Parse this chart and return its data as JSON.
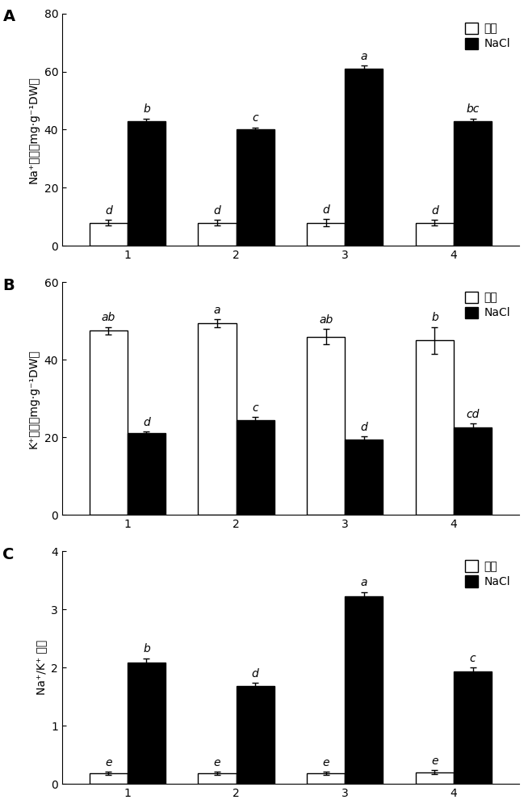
{
  "panels": [
    {
      "title": "A",
      "ylabel": "Na⁺含量（mg·g⁻¹DW）",
      "ylim": [
        0,
        80
      ],
      "yticks": [
        0,
        20,
        40,
        60,
        80
      ],
      "categories": [
        "1",
        "2",
        "3",
        "4"
      ],
      "control_values": [
        8.0,
        8.0,
        8.0,
        8.0
      ],
      "nacl_values": [
        43.0,
        40.0,
        61.0,
        43.0
      ],
      "control_errors": [
        1.0,
        1.0,
        1.2,
        1.0
      ],
      "nacl_errors": [
        0.8,
        0.8,
        1.0,
        0.8
      ],
      "control_labels": [
        "d",
        "d",
        "d",
        "d"
      ],
      "nacl_labels": [
        "b",
        "c",
        "a",
        "bc"
      ]
    },
    {
      "title": "B",
      "ylabel": "K⁺含量（mg·g⁻¹DW）",
      "ylim": [
        0,
        60
      ],
      "yticks": [
        0,
        20,
        40,
        60
      ],
      "categories": [
        "1",
        "2",
        "3",
        "4"
      ],
      "control_values": [
        47.5,
        49.5,
        46.0,
        45.0
      ],
      "nacl_values": [
        21.0,
        24.5,
        19.5,
        22.5
      ],
      "control_errors": [
        1.0,
        1.0,
        2.0,
        3.5
      ],
      "nacl_errors": [
        0.5,
        0.8,
        0.8,
        1.0
      ],
      "control_labels": [
        "ab",
        "a",
        "ab",
        "b"
      ],
      "nacl_labels": [
        "d",
        "c",
        "d",
        "cd"
      ]
    },
    {
      "title": "C",
      "ylabel": "Na⁺/K⁺ 比値",
      "ylim": [
        0,
        4
      ],
      "yticks": [
        0,
        1,
        2,
        3,
        4
      ],
      "categories": [
        "1",
        "2",
        "3",
        "4"
      ],
      "control_values": [
        0.18,
        0.18,
        0.18,
        0.2
      ],
      "nacl_values": [
        2.08,
        1.68,
        3.22,
        1.93
      ],
      "control_errors": [
        0.03,
        0.03,
        0.03,
        0.03
      ],
      "nacl_errors": [
        0.08,
        0.06,
        0.08,
        0.07
      ],
      "control_labels": [
        "e",
        "e",
        "e",
        "e"
      ],
      "nacl_labels": [
        "b",
        "d",
        "a",
        "c"
      ]
    }
  ],
  "bar_width": 0.35,
  "control_color": "white",
  "nacl_color": "black",
  "edge_color": "black",
  "legend_loc": "upper right",
  "legend_control_label": "对照",
  "legend_nacl_label": "NaCl",
  "label_fontsize": 10,
  "tick_fontsize": 10,
  "annotation_fontsize": 10,
  "panel_label_fontsize": 14
}
